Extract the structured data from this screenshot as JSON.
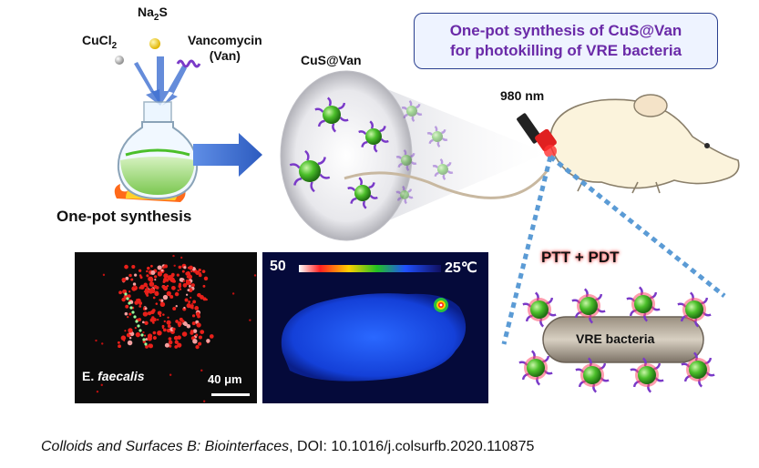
{
  "title_box": {
    "line1": "One-pot synthesis of CuS@Van",
    "line2": "for photokilling of VRE bacteria"
  },
  "reagents": {
    "cucl2": "CuCl",
    "cucl2_sub": "2",
    "na2s_a": "Na",
    "na2s_sub": "2",
    "na2s_b": "S",
    "vanc_line1": "Vancomycin",
    "vanc_line2": "(Van)"
  },
  "product_label": "CuS@Van",
  "synthesis_label": "One-pot synthesis",
  "laser_label": "980 nm",
  "ptt_label": "PTT + PDT",
  "bacteria_label": "VRE bacteria",
  "micro": {
    "species_prefix": "E.",
    "species": "faecalis",
    "scale": "40 μm"
  },
  "thermal": {
    "max": "50",
    "min": "25℃"
  },
  "citation": {
    "journal": "Colloids and Surfaces B: Biointerfaces",
    "doi": ", DOI: 10.1016/j.colsurfb.2020.110875"
  },
  "colors": {
    "title_purple": "#6a2aa8",
    "particle_green": "#4bbf2a",
    "ligand_purple": "#7a3ac8",
    "arrow_blue": "#3f6fd1"
  }
}
